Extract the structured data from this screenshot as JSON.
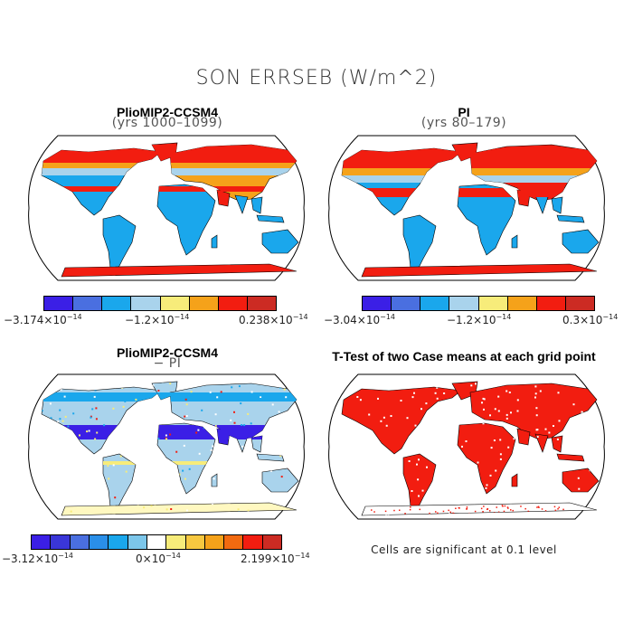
{
  "title": "SON ERRSEB (W/m^2)",
  "chart_data": [
    {
      "type": "heatmap",
      "title": "PlioMIP2-CCSM4",
      "subtitle": "(yrs 1000–1099)",
      "colorbar": {
        "colors": [
          "#3b1fe6",
          "#4a6fe0",
          "#1aa7ec",
          "#a9d3ec",
          "#f7ec7a",
          "#f5a21a",
          "#f21d10",
          "#cc2b23"
        ],
        "labels": [
          "−3.174×10",
          "−1.2×10",
          "0.238×10"
        ],
        "exponent": "−14"
      }
    },
    {
      "type": "heatmap",
      "title": "PI",
      "subtitle": "(yrs 80–179)",
      "colorbar": {
        "colors": [
          "#3b1fe6",
          "#4a6fe0",
          "#1aa7ec",
          "#a9d3ec",
          "#f7ec7a",
          "#f5a21a",
          "#f21d10",
          "#cc2b23"
        ],
        "labels": [
          "−3.04×10",
          "−1.2×10",
          "0.3×10"
        ],
        "exponent": "−14"
      }
    },
    {
      "type": "heatmap",
      "title": "PlioMIP2-CCSM4",
      "subtitle": "− PI",
      "colorbar": {
        "colors": [
          "#3b1fe6",
          "#3a36d8",
          "#4a6fe0",
          "#2a8fe8",
          "#1aa7ec",
          "#7cc6ea",
          "#ffffff",
          "#f7ec7a",
          "#f7c840",
          "#f5a21a",
          "#f26a10",
          "#f21d10",
          "#cc2b23"
        ],
        "labels": [
          "−3.12×10",
          "0×10",
          "2.199×10"
        ],
        "exponent": "−14"
      }
    },
    {
      "type": "heatmap",
      "title": "T-Test of two Case means at each grid point",
      "note": "Cells are significant at 0.1 level"
    }
  ]
}
